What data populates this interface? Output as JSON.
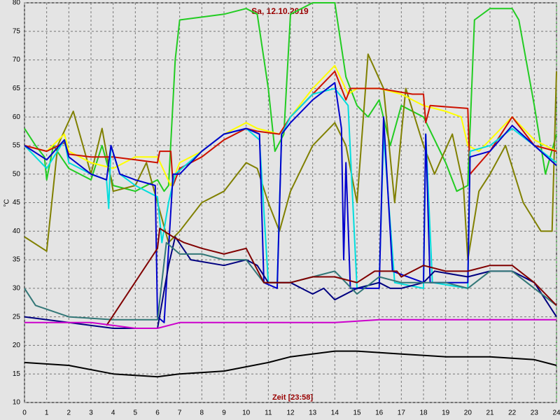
{
  "chart_data": {
    "type": "line",
    "title": "Sa, 12.10.2019",
    "x_label": "Zeit [23:58]",
    "y_label": "°C",
    "xlim": [
      0,
      24
    ],
    "ylim": [
      10,
      80
    ],
    "xticks": [
      0,
      1,
      2,
      3,
      4,
      5,
      6,
      7,
      8,
      9,
      10,
      11,
      12,
      13,
      14,
      15,
      16,
      17,
      18,
      19,
      20,
      21,
      22,
      23,
      24
    ],
    "yticks": [
      10,
      15,
      20,
      25,
      30,
      35,
      40,
      45,
      50,
      55,
      60,
      65,
      70,
      75,
      80
    ],
    "grid": true,
    "series": [
      {
        "color": "#22cc22",
        "x": [
          0,
          0.5,
          0.9,
          1,
          1.3,
          2,
          3,
          3.5,
          4,
          5,
          6,
          6.3,
          6.5,
          6.8,
          7,
          9,
          10,
          10.5,
          11,
          11.3,
          11.7,
          12,
          13,
          14,
          14.5,
          15,
          15.5,
          16,
          16.5,
          17,
          18,
          19,
          19.5,
          20,
          20.3,
          21,
          22,
          22.3,
          23,
          23.5,
          24
        ],
        "values": [
          58,
          55,
          53,
          49,
          55,
          51,
          49,
          55,
          48,
          47,
          49,
          47,
          48,
          70,
          77,
          78,
          79,
          78,
          65,
          54,
          57,
          78,
          80,
          80,
          67,
          62,
          60,
          63,
          55,
          62,
          60,
          52,
          47,
          48,
          77,
          79,
          79,
          77,
          62,
          50,
          57
        ]
      },
      {
        "color": "#808000",
        "x": [
          0,
          1,
          1.5,
          2.2,
          3,
          3.5,
          4,
          5,
          5.5,
          6,
          6.5,
          7,
          8,
          9,
          10,
          10.5,
          11,
          11.5,
          12,
          13,
          14,
          14.5,
          15,
          15.5,
          16.2,
          16.7,
          17.2,
          18,
          18.5,
          19.3,
          19.8,
          20,
          20.5,
          21,
          21.7,
          22.5,
          23.3,
          23.8,
          24
        ],
        "values": [
          39,
          36.5,
          55,
          61,
          50,
          58,
          47,
          48,
          52,
          45,
          38,
          40,
          45,
          47,
          52,
          51,
          45,
          40,
          47,
          55,
          59,
          55,
          45,
          71,
          65,
          45,
          65,
          55,
          50,
          57,
          48,
          35,
          47,
          50,
          55,
          45,
          40,
          40,
          68
        ]
      },
      {
        "color": "#ffff00",
        "x": [
          0,
          1,
          1.8,
          2,
          3,
          4,
          5,
          6,
          6.6,
          7,
          8,
          9,
          10,
          10.5,
          11.5,
          12,
          13,
          14,
          14.6,
          15,
          16,
          17,
          18,
          19,
          19.7,
          20,
          20.5,
          21,
          22,
          23,
          24
        ],
        "values": [
          55,
          54,
          57,
          54,
          52,
          51,
          53,
          53,
          48,
          52,
          54,
          57,
          59,
          58,
          57,
          60,
          65,
          69,
          64,
          65,
          65,
          64,
          62,
          61,
          60,
          55,
          54,
          56,
          60,
          56,
          54
        ]
      },
      {
        "color": "#cc1100",
        "x": [
          0,
          1,
          1.8,
          2,
          3,
          4,
          5,
          6,
          6.1,
          6.6,
          6.7,
          7,
          8,
          9,
          10,
          10.5,
          11.5,
          12,
          13,
          14,
          14.5,
          14.7,
          16,
          17.5,
          18,
          18.1,
          18.3,
          20,
          20.1,
          21,
          22,
          23,
          24
        ],
        "values": [
          55,
          54,
          55.5,
          53.5,
          53,
          53,
          52.5,
          52,
          54,
          54,
          48,
          51,
          53,
          56,
          58,
          57.5,
          57,
          60,
          64,
          68,
          63,
          65,
          65,
          64,
          64,
          59,
          62,
          61.5,
          50,
          54,
          60,
          55,
          54
        ]
      },
      {
        "color": "#00dddd",
        "x": [
          0,
          0.5,
          1,
          1.8,
          2,
          3,
          3.7,
          3.8,
          3.9,
          4.3,
          5,
          6,
          6.2,
          6.5,
          6.8,
          8,
          9,
          10,
          10.6,
          11,
          11.4,
          11.6,
          12,
          13,
          14,
          14.6,
          15,
          16,
          16.2,
          16.7,
          18,
          18.1,
          18.4,
          20,
          20.1,
          21,
          22,
          23,
          24
        ],
        "values": [
          55,
          53,
          51,
          56,
          52,
          50,
          49,
          44,
          55,
          50,
          48,
          46,
          38,
          45,
          50,
          54,
          57,
          58,
          56,
          31,
          31,
          57,
          60,
          64,
          65,
          62,
          30,
          31,
          57,
          31,
          30,
          57,
          31,
          30,
          54,
          55,
          58,
          55,
          52
        ]
      },
      {
        "color": "#0000cc",
        "x": [
          0,
          1,
          1.8,
          2,
          3,
          3.7,
          3.9,
          4.3,
          5,
          5.9,
          6,
          6.3,
          6.7,
          7,
          8,
          9,
          10,
          10.6,
          10.8,
          11.4,
          11.6,
          12,
          13,
          14,
          14.3,
          14.4,
          14.5,
          14.7,
          16,
          16.2,
          16.6,
          18,
          18.1,
          18.3,
          20,
          20.1,
          21,
          22,
          23,
          24
        ],
        "values": [
          55,
          52.5,
          56,
          53,
          50,
          49,
          55,
          50,
          49,
          48,
          25,
          24,
          50,
          50,
          54,
          57,
          58,
          57,
          31,
          30,
          57,
          59,
          63,
          66,
          58,
          35,
          52,
          30,
          30,
          60,
          33,
          31,
          57,
          31,
          31,
          53,
          54,
          58.5,
          55,
          51.5
        ]
      },
      {
        "color": "#000080",
        "x": [
          0,
          2,
          4,
          6,
          6.5,
          6.8,
          7.5,
          9,
          10,
          10.5,
          11,
          12,
          12.5,
          13,
          13.5,
          14,
          15,
          16,
          16.5,
          17,
          18,
          18.5,
          20,
          21,
          22,
          23,
          24
        ],
        "values": [
          25,
          24,
          23,
          23,
          34,
          39,
          35,
          34,
          35,
          34,
          31,
          31,
          30,
          29,
          30,
          28,
          30,
          31,
          30,
          30,
          31,
          33,
          32,
          33,
          33,
          31,
          25
        ]
      },
      {
        "color": "#337777",
        "x": [
          0,
          0.5,
          2,
          4,
          6,
          6.4,
          7,
          8,
          9,
          10,
          10.8,
          12,
          13,
          14,
          15,
          16,
          17,
          18,
          19,
          20,
          21,
          22,
          23,
          24
        ],
        "values": [
          30,
          27,
          25,
          24.5,
          24.5,
          38,
          36,
          36,
          35,
          35,
          31,
          31,
          32,
          33,
          29,
          32,
          31,
          31,
          31,
          30,
          33,
          33,
          30,
          27
        ]
      },
      {
        "color": "#800000",
        "x": [
          3.7,
          6,
          6.1,
          6.7,
          7.2,
          8,
          9,
          10,
          10.8,
          12,
          13,
          14,
          15,
          15.8,
          16.8,
          17,
          18,
          19,
          20,
          21,
          22,
          23,
          24
        ],
        "values": [
          23.5,
          37,
          40.5,
          39,
          38,
          37,
          36,
          37,
          31,
          31,
          32,
          32,
          31,
          33,
          33,
          32,
          34,
          33,
          33,
          34,
          34,
          31,
          27
        ]
      },
      {
        "color": "#cc00cc",
        "x": [
          0,
          3,
          4,
          5,
          6,
          7,
          10,
          14,
          16,
          20,
          24
        ],
        "values": [
          24,
          24,
          23.5,
          23,
          23,
          24,
          24,
          24,
          24.5,
          24.5,
          24.5
        ]
      },
      {
        "color": "#000000",
        "x": [
          0,
          2,
          4,
          6,
          7,
          9,
          11,
          12,
          14,
          15,
          17,
          19,
          21,
          23,
          24
        ],
        "values": [
          17,
          16.5,
          15,
          14.5,
          15,
          15.5,
          17,
          18,
          19,
          19,
          18.5,
          18,
          18,
          17.5,
          16.5
        ]
      }
    ]
  }
}
